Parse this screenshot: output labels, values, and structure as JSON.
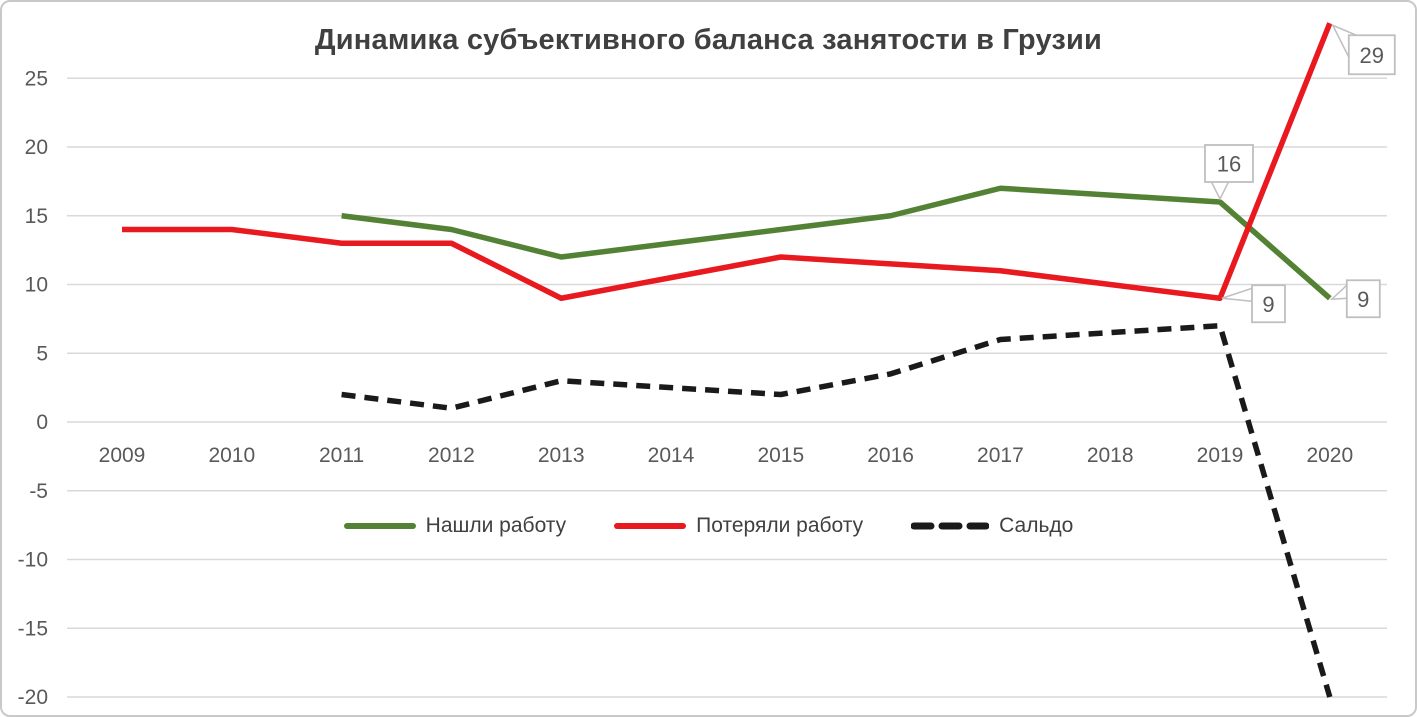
{
  "title": "Динамика субъективного баланса занятости в Грузии",
  "colors": {
    "found": "#548235",
    "lost": "#e8191f",
    "balance": "#1a1a1a",
    "gridline": "#d9d9d9",
    "axis_text": "#595959",
    "title_text": "#404040",
    "callout_border": "#bfbfbf",
    "callout_fill": "#ffffff",
    "callout_text": "#595959",
    "frame_border": "#c9c9c9",
    "background": "#ffffff"
  },
  "chart_data": {
    "type": "line",
    "title": "Динамика субъективного баланса занятости в Грузии",
    "x": [
      2009,
      2010,
      2011,
      2012,
      2013,
      2014,
      2015,
      2016,
      2017,
      2018,
      2019,
      2020
    ],
    "series": [
      {
        "name": "Нашли работу",
        "color_key": "found",
        "style": "solid",
        "values": [
          null,
          null,
          15,
          14,
          12,
          13,
          14,
          15,
          17,
          16.5,
          16,
          9
        ]
      },
      {
        "name": "Потеряли работу",
        "color_key": "lost",
        "style": "solid",
        "values": [
          14,
          14,
          13,
          13,
          9,
          10.5,
          12,
          11.5,
          11,
          10,
          9,
          29
        ]
      },
      {
        "name": "Сальдо",
        "color_key": "balance",
        "style": "dashed",
        "values": [
          null,
          null,
          2,
          1,
          3,
          2.5,
          2,
          3.5,
          6,
          6.5,
          7,
          -20
        ]
      }
    ],
    "ylim": [
      -20,
      29
    ],
    "yticks": [
      25,
      20,
      15,
      10,
      5,
      0,
      -5,
      -10,
      -15,
      -20
    ],
    "grid": "horizontal",
    "legend_position": "bottom-center",
    "data_labels": [
      {
        "text": "16",
        "series": 0,
        "year": 2019
      },
      {
        "text": "29",
        "series": 1,
        "year": 2020
      },
      {
        "text": "9",
        "series": 1,
        "year": 2019
      },
      {
        "text": "9",
        "series": 0,
        "year": 2020
      }
    ]
  },
  "legend": {
    "items": [
      {
        "label": "Нашли работу"
      },
      {
        "label": "Потеряли работу"
      },
      {
        "label": "Сальдо"
      }
    ]
  }
}
